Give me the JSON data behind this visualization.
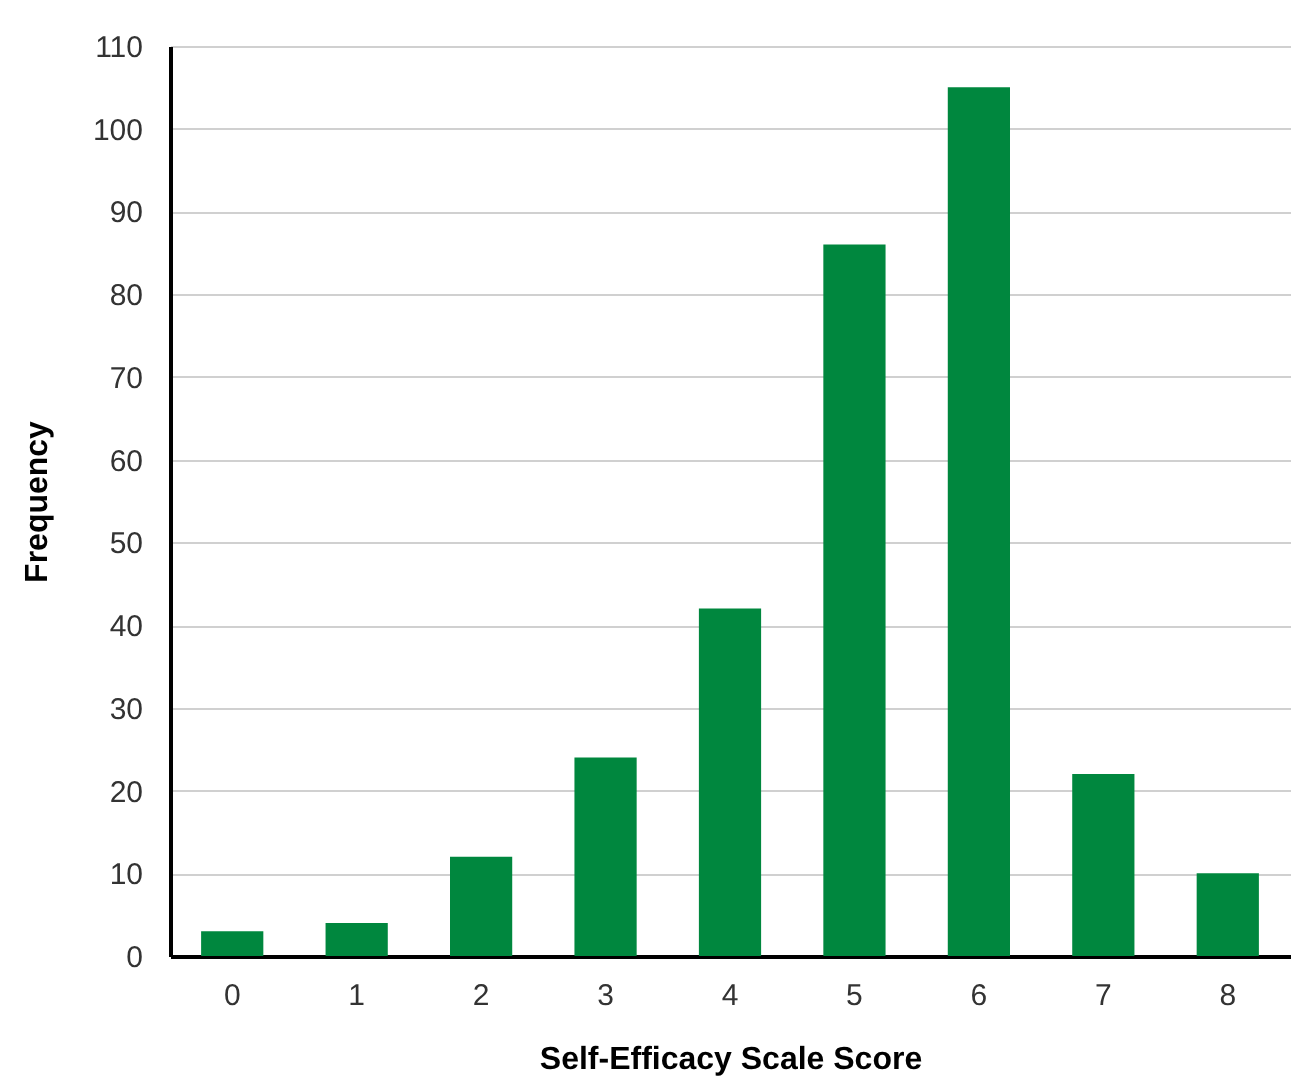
{
  "chart_data": {
    "type": "bar",
    "xlabel": "Self-Efficacy Scale Score",
    "ylabel": "Frequency",
    "categories": [
      "0",
      "1",
      "2",
      "3",
      "4",
      "5",
      "6",
      "7",
      "8"
    ],
    "values": [
      3,
      4,
      12,
      24,
      42,
      86,
      105,
      22,
      10
    ],
    "color": "#00873e",
    "ylim": [
      0,
      110
    ],
    "yticks": [
      0,
      10,
      20,
      30,
      40,
      50,
      60,
      70,
      80,
      90,
      100,
      110
    ],
    "grid": "y"
  }
}
